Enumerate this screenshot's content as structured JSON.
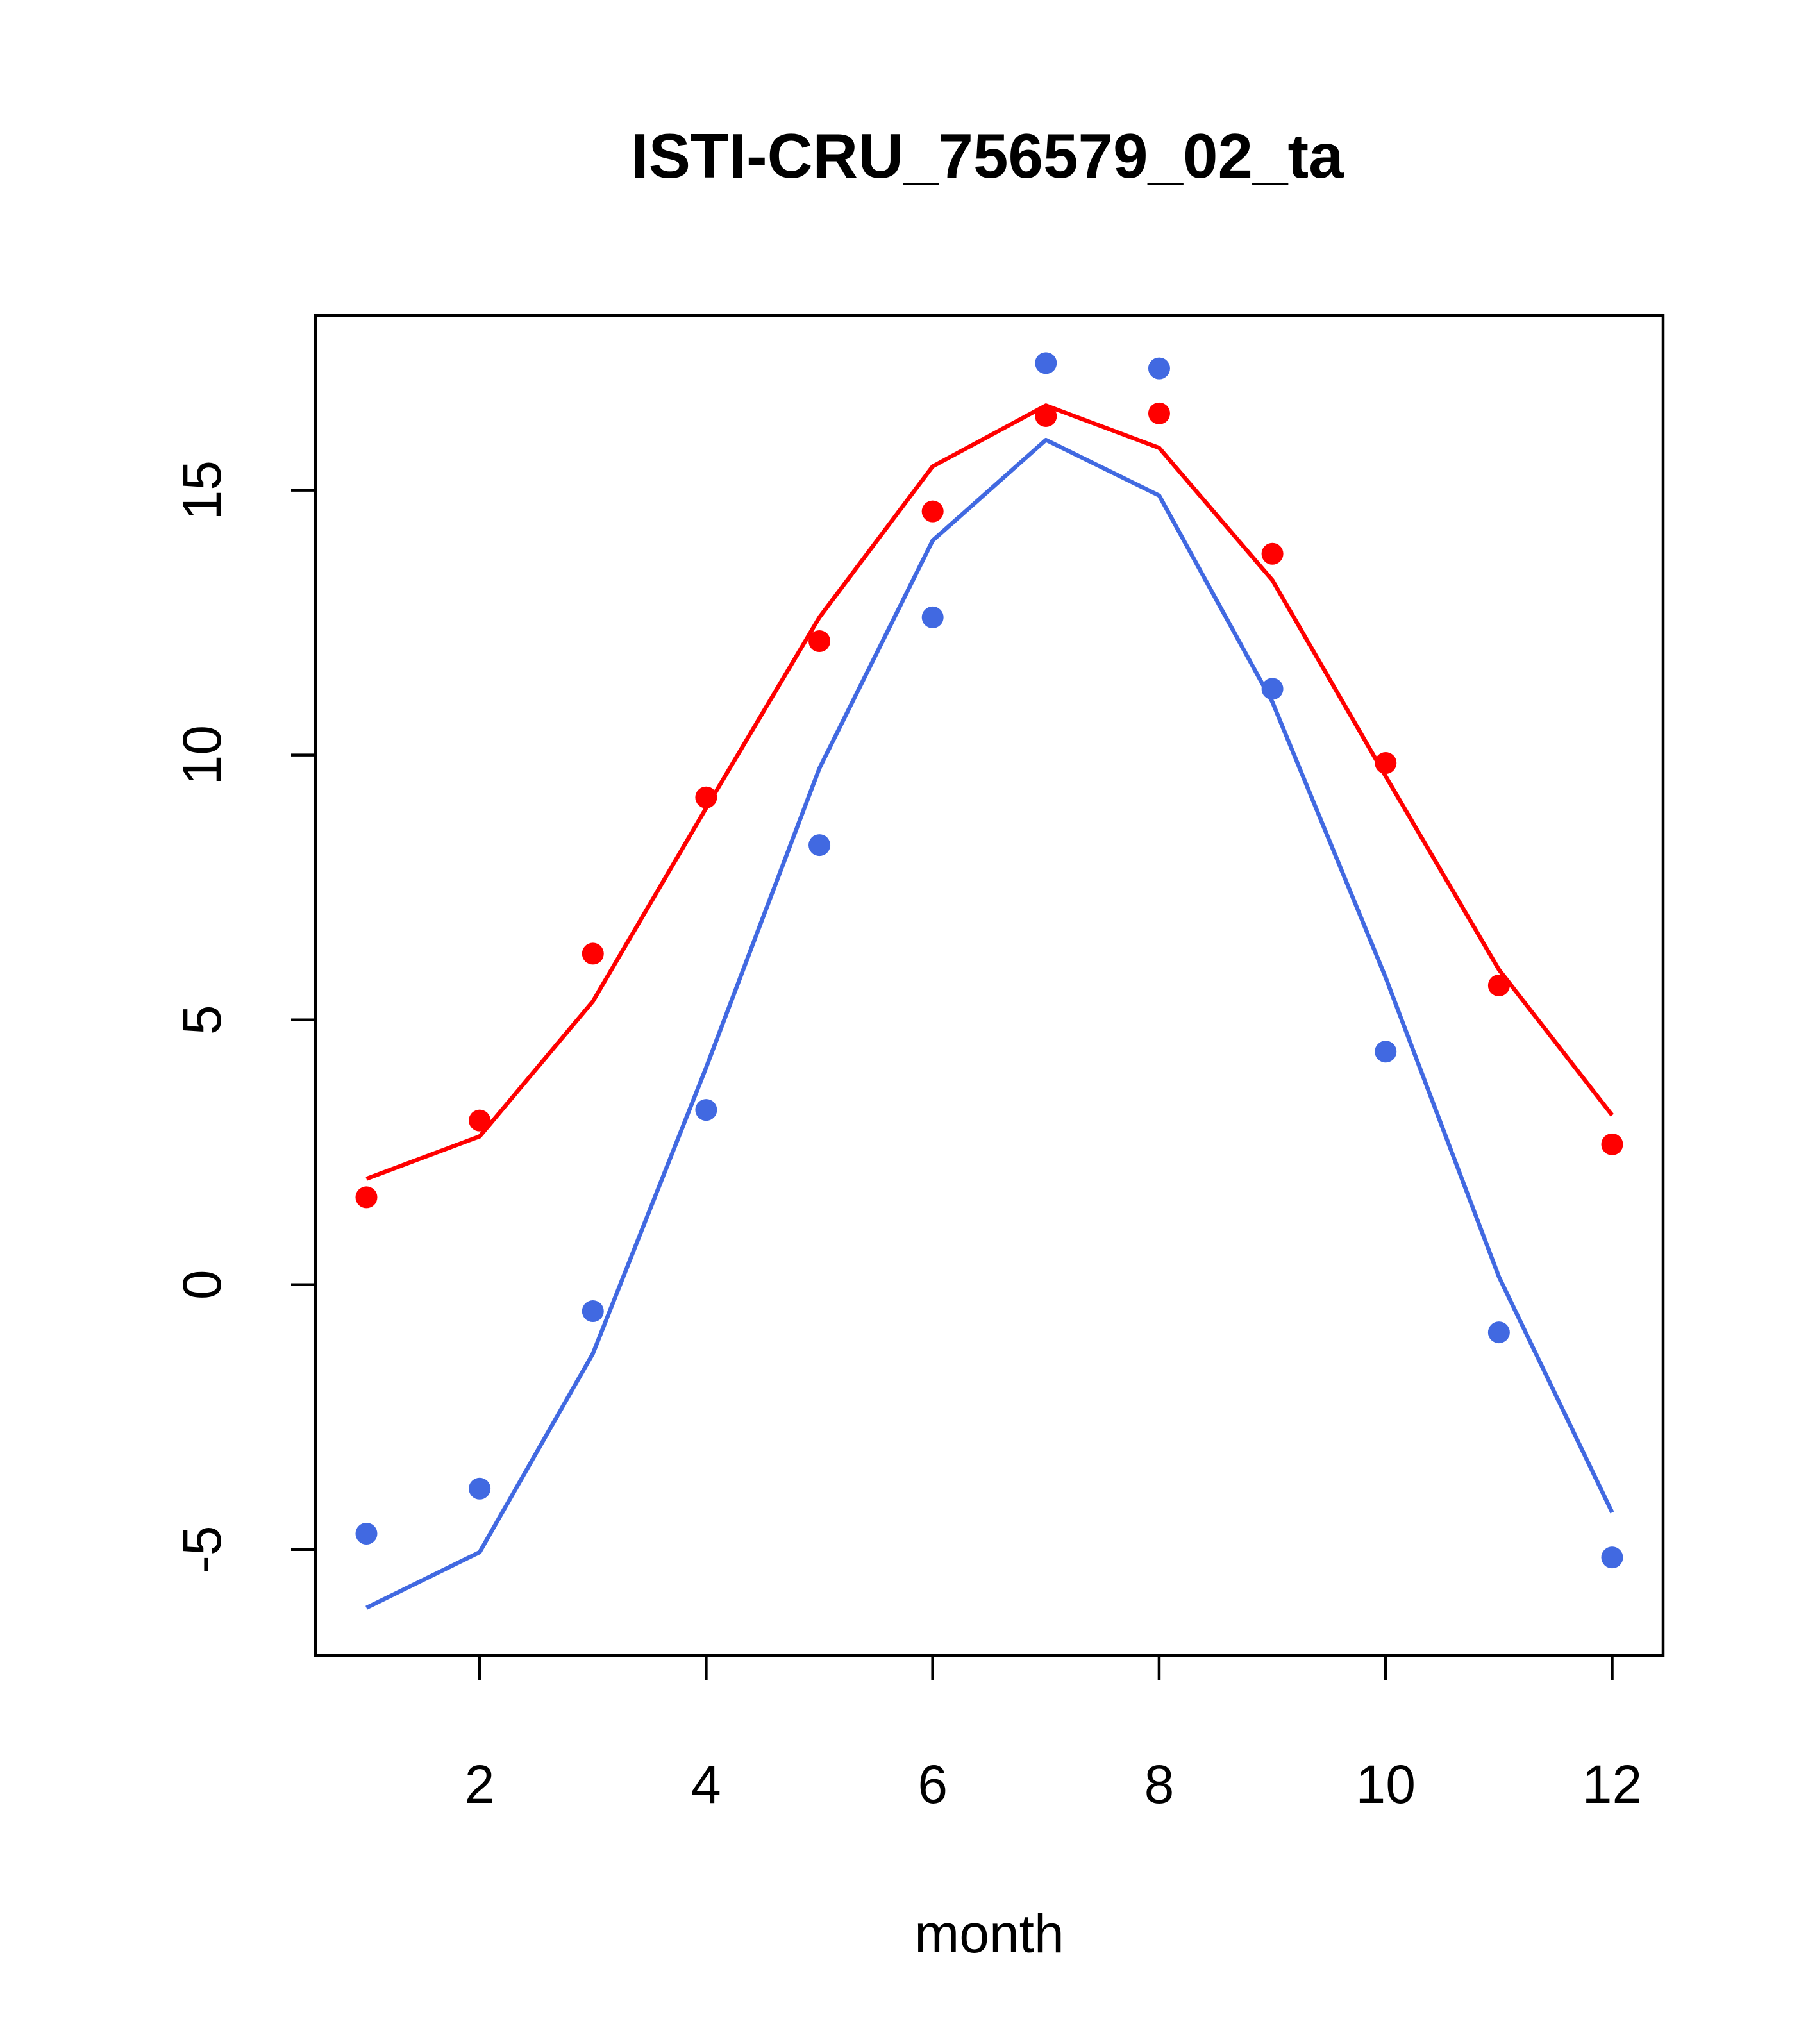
{
  "chart_data": {
    "type": "line",
    "title": "ISTI-CRU_756579_02_ta",
    "xlabel": "month",
    "ylabel": "",
    "xlim": [
      0.55,
      12.45
    ],
    "ylim": [
      -7.0,
      18.3
    ],
    "x_ticks": [
      2,
      4,
      6,
      8,
      10,
      12
    ],
    "y_ticks": [
      -5,
      0,
      5,
      10,
      15
    ],
    "x_tick_labels": [
      "2",
      "4",
      "6",
      "8",
      "10",
      "12"
    ],
    "y_tick_labels": [
      "-5",
      "0",
      "5",
      "10",
      "15"
    ],
    "x": [
      1,
      2,
      3,
      4,
      5,
      6,
      7,
      8,
      9,
      10,
      11,
      12
    ],
    "series": [
      {
        "kind": "points",
        "color": "#ff0000",
        "values": [
          1.65,
          3.1,
          6.25,
          9.2,
          12.15,
          14.6,
          16.4,
          16.45,
          13.8,
          9.85,
          5.65,
          2.65
        ]
      },
      {
        "kind": "line",
        "color": "#ff0000",
        "values": [
          2.0,
          2.8,
          5.35,
          9.0,
          12.6,
          15.45,
          16.6,
          15.8,
          13.3,
          9.6,
          5.95,
          3.2
        ]
      },
      {
        "kind": "points",
        "color": "#4169e1",
        "values": [
          -4.7,
          -3.85,
          -0.5,
          3.3,
          8.3,
          12.6,
          17.4,
          17.3,
          11.25,
          4.4,
          -0.9,
          -5.15
        ]
      },
      {
        "kind": "line",
        "color": "#4169e1",
        "values": [
          -6.1,
          -5.05,
          -1.3,
          4.1,
          9.75,
          14.05,
          15.95,
          14.9,
          11.0,
          5.8,
          0.15,
          -4.3
        ]
      }
    ],
    "grid": false,
    "legend": "none"
  }
}
